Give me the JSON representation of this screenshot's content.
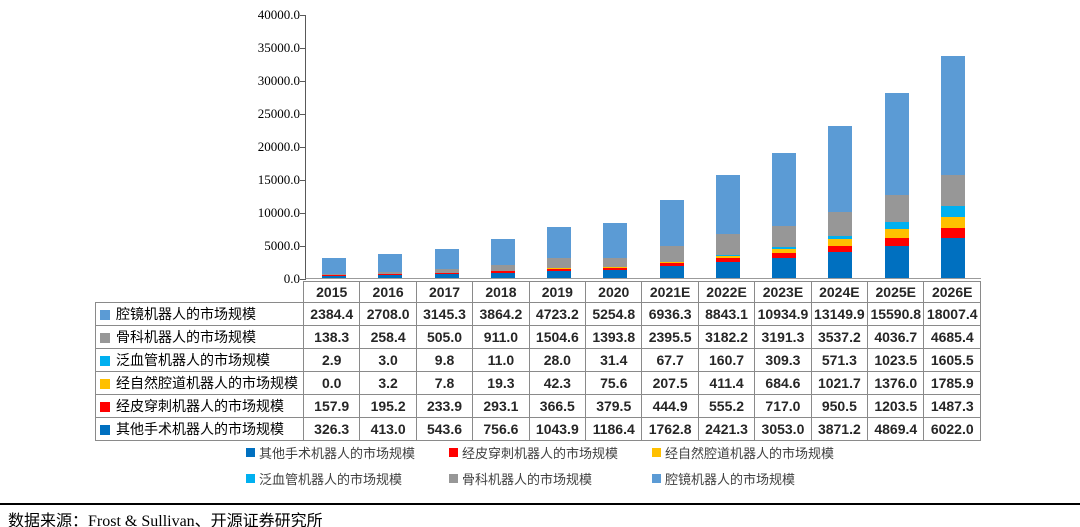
{
  "chart_data": {
    "type": "bar",
    "stacked": true,
    "title": "",
    "xlabel": "",
    "ylabel": "",
    "categories": [
      "2015",
      "2016",
      "2017",
      "2018",
      "2019",
      "2020",
      "2021E",
      "2022E",
      "2023E",
      "2024E",
      "2025E",
      "2026E"
    ],
    "series": [
      {
        "name": "其他手术机器人的市场规模",
        "color": "#0070C0",
        "values": [
          326.3,
          413.0,
          543.6,
          756.6,
          1043.9,
          1186.4,
          1762.8,
          2421.3,
          3053.0,
          3871.2,
          4869.4,
          6022.0
        ]
      },
      {
        "name": "经皮穿刺机器人的市场规模",
        "color": "#FF0000",
        "values": [
          157.9,
          195.2,
          233.9,
          293.1,
          366.5,
          379.5,
          444.9,
          555.2,
          717.0,
          950.5,
          1203.5,
          1487.3
        ]
      },
      {
        "name": "经自然腔道机器人的市场规模",
        "color": "#FFC000",
        "values": [
          0.0,
          3.2,
          7.8,
          19.3,
          42.3,
          75.6,
          207.5,
          411.4,
          684.6,
          1021.7,
          1376.0,
          1785.9
        ]
      },
      {
        "name": "泛血管机器人的市场规模",
        "color": "#00B0F0",
        "values": [
          2.9,
          3.0,
          9.8,
          11.0,
          28.0,
          31.4,
          67.7,
          160.7,
          309.3,
          571.3,
          1023.5,
          1605.5
        ]
      },
      {
        "name": "骨科机器人的市场规模",
        "color": "#979797",
        "values": [
          138.3,
          258.4,
          505.0,
          911.0,
          1504.6,
          1393.8,
          2395.5,
          3182.2,
          3191.3,
          3537.2,
          4036.7,
          4685.4
        ]
      },
      {
        "name": "腔镜机器人的市场规模",
        "color": "#5B9BD5",
        "values": [
          2384.4,
          2708.0,
          3145.3,
          3864.2,
          4723.2,
          5254.8,
          6936.3,
          8843.1,
          10934.9,
          13149.9,
          15590.8,
          18007.4
        ]
      }
    ],
    "ylim": [
      0,
      40000
    ],
    "ytick_step": 5000,
    "ytick_labels": [
      "40000.0",
      "35000.0",
      "30000.0",
      "25000.0",
      "20000.0",
      "15000.0",
      "10000.0",
      "5000.0",
      "0.0"
    ],
    "grid": false,
    "legend_position": "bottom",
    "table_row_order": [
      5,
      4,
      3,
      2,
      1,
      0
    ],
    "legend_order": [
      0,
      1,
      2,
      3,
      4,
      5
    ]
  },
  "source_note": "数据来源：Frost & Sullivan、开源证券研究所"
}
